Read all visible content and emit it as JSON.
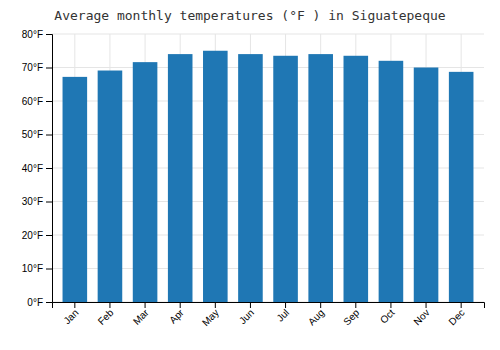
{
  "chart_data": {
    "type": "bar",
    "title": "Average monthly temperatures (°F ) in Siguatepeque",
    "categories": [
      "Jan",
      "Feb",
      "Mar",
      "Apr",
      "May",
      "Jun",
      "Jul",
      "Aug",
      "Sep",
      "Oct",
      "Nov",
      "Dec"
    ],
    "values": [
      67.2,
      69.1,
      71.6,
      74.0,
      75.0,
      74.0,
      73.5,
      74.0,
      73.5,
      72.0,
      70.0,
      68.7
    ],
    "ylim": [
      0,
      80
    ],
    "yticks": [
      {
        "value": 0,
        "label": "0°F"
      },
      {
        "value": 10,
        "label": "10°F"
      },
      {
        "value": 20,
        "label": "20°F"
      },
      {
        "value": 30,
        "label": "30°F"
      },
      {
        "value": 40,
        "label": "40°F"
      },
      {
        "value": 50,
        "label": "50°F"
      },
      {
        "value": 60,
        "label": "60°F"
      },
      {
        "value": 70,
        "label": "70°F"
      },
      {
        "value": 80,
        "label": "80°F"
      }
    ],
    "grid": true
  }
}
